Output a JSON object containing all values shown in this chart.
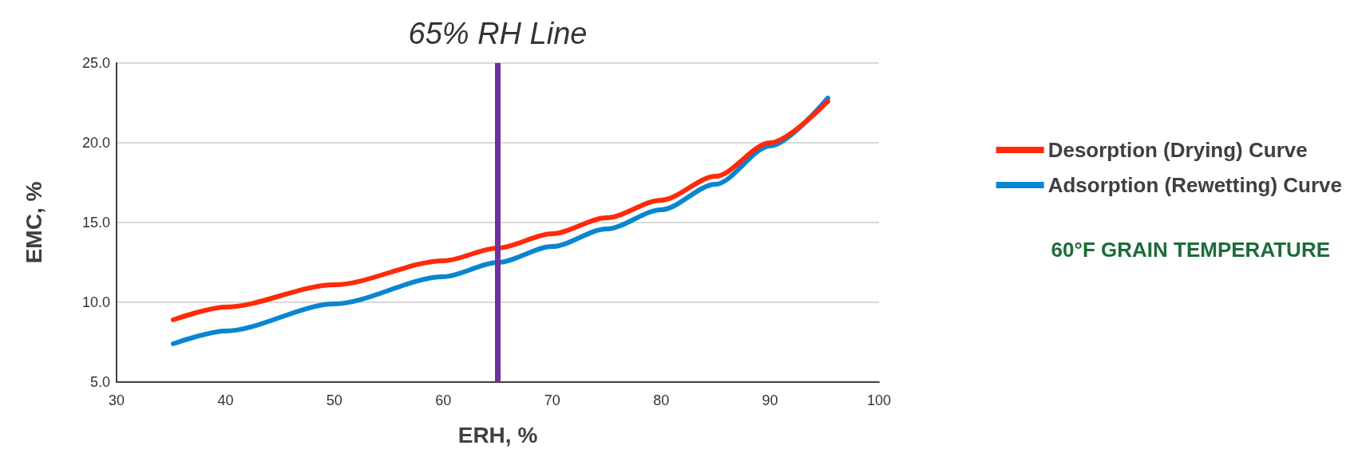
{
  "chart_data": {
    "type": "line",
    "xlabel": "ERH, %",
    "ylabel": "EMC, %",
    "xlim": [
      30,
      100
    ],
    "xticks": [
      30,
      40,
      50,
      60,
      70,
      80,
      90,
      100
    ],
    "ylim": [
      5,
      25
    ],
    "yticks": [
      {
        "value": 5,
        "label": "5.0"
      },
      {
        "value": 10,
        "label": "10.0"
      },
      {
        "value": 15,
        "label": "15.0"
      },
      {
        "value": 20,
        "label": "20.0"
      },
      {
        "value": 25,
        "label": "25.0"
      }
    ],
    "grid": "y",
    "legend": "right",
    "marker": "none",
    "line_style": "solid",
    "series": [
      {
        "name": "Desorption (Drying) Curve",
        "color": "#ff2a0a",
        "x": [
          35.2,
          40,
          50,
          60,
          65,
          70,
          75,
          80,
          85,
          90,
          95.3
        ],
        "values": [
          8.9,
          9.7,
          11.1,
          12.6,
          13.4,
          14.3,
          15.3,
          16.4,
          17.9,
          20.0,
          22.6
        ]
      },
      {
        "name": "Adsorption (Rewetting) Curve",
        "color": "#0a86d0",
        "x": [
          35.2,
          40,
          50,
          60,
          65,
          70,
          75,
          80,
          85,
          90,
          95.3
        ],
        "values": [
          7.4,
          8.2,
          9.9,
          11.6,
          12.5,
          13.5,
          14.6,
          15.8,
          17.4,
          19.8,
          22.8
        ]
      }
    ],
    "ref_lines": [
      {
        "axis": "x",
        "value": 65,
        "label": "65% RH Line",
        "color": "#7030a0"
      }
    ],
    "annotations": [
      "60°F GRAIN TEMPERATURE"
    ]
  }
}
